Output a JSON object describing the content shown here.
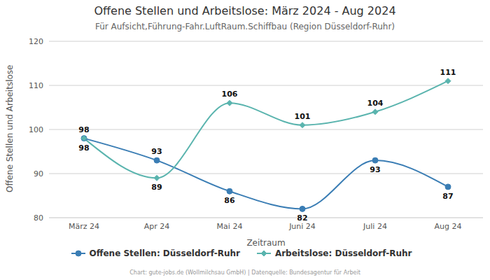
{
  "chart_data": {
    "type": "line",
    "title": "Offene Stellen und Arbeitslose: März 2024 - Aug 2024",
    "subtitle": "Für Aufsicht,Führung-Fahr.LuftRaum.Schiffbau (Region Düsseldorf-Ruhr)",
    "x_label": "Zeitraum",
    "y_label": "Offene Stellen und Arbeitslose",
    "source": "Chart: gute-jobs.de (Wollmilchsau GmbH) | Datenquelle: Bundesagentur für Arbeit",
    "categories": [
      "März 24",
      "Apr 24",
      "Mai 24",
      "Juni 24",
      "Juli 24",
      "Aug 24"
    ],
    "series": [
      {
        "name": "Offene Stellen: Düsseldorf-Ruhr",
        "color": "#3a7db4",
        "marker": "circle",
        "line_style": "solid",
        "values": [
          98,
          93,
          86,
          82,
          93,
          87
        ]
      },
      {
        "name": "Arbeitslose: Düsseldorf-Ruhr",
        "color": "#5ab4ae",
        "marker": "diamond",
        "line_style": "solid",
        "values": [
          98,
          89,
          106,
          101,
          104,
          111
        ]
      }
    ],
    "ylim": [
      80,
      120
    ],
    "yticks": [
      80,
      90,
      100,
      110,
      120
    ],
    "grid": true,
    "legend": "bottom",
    "data_labels": true
  }
}
